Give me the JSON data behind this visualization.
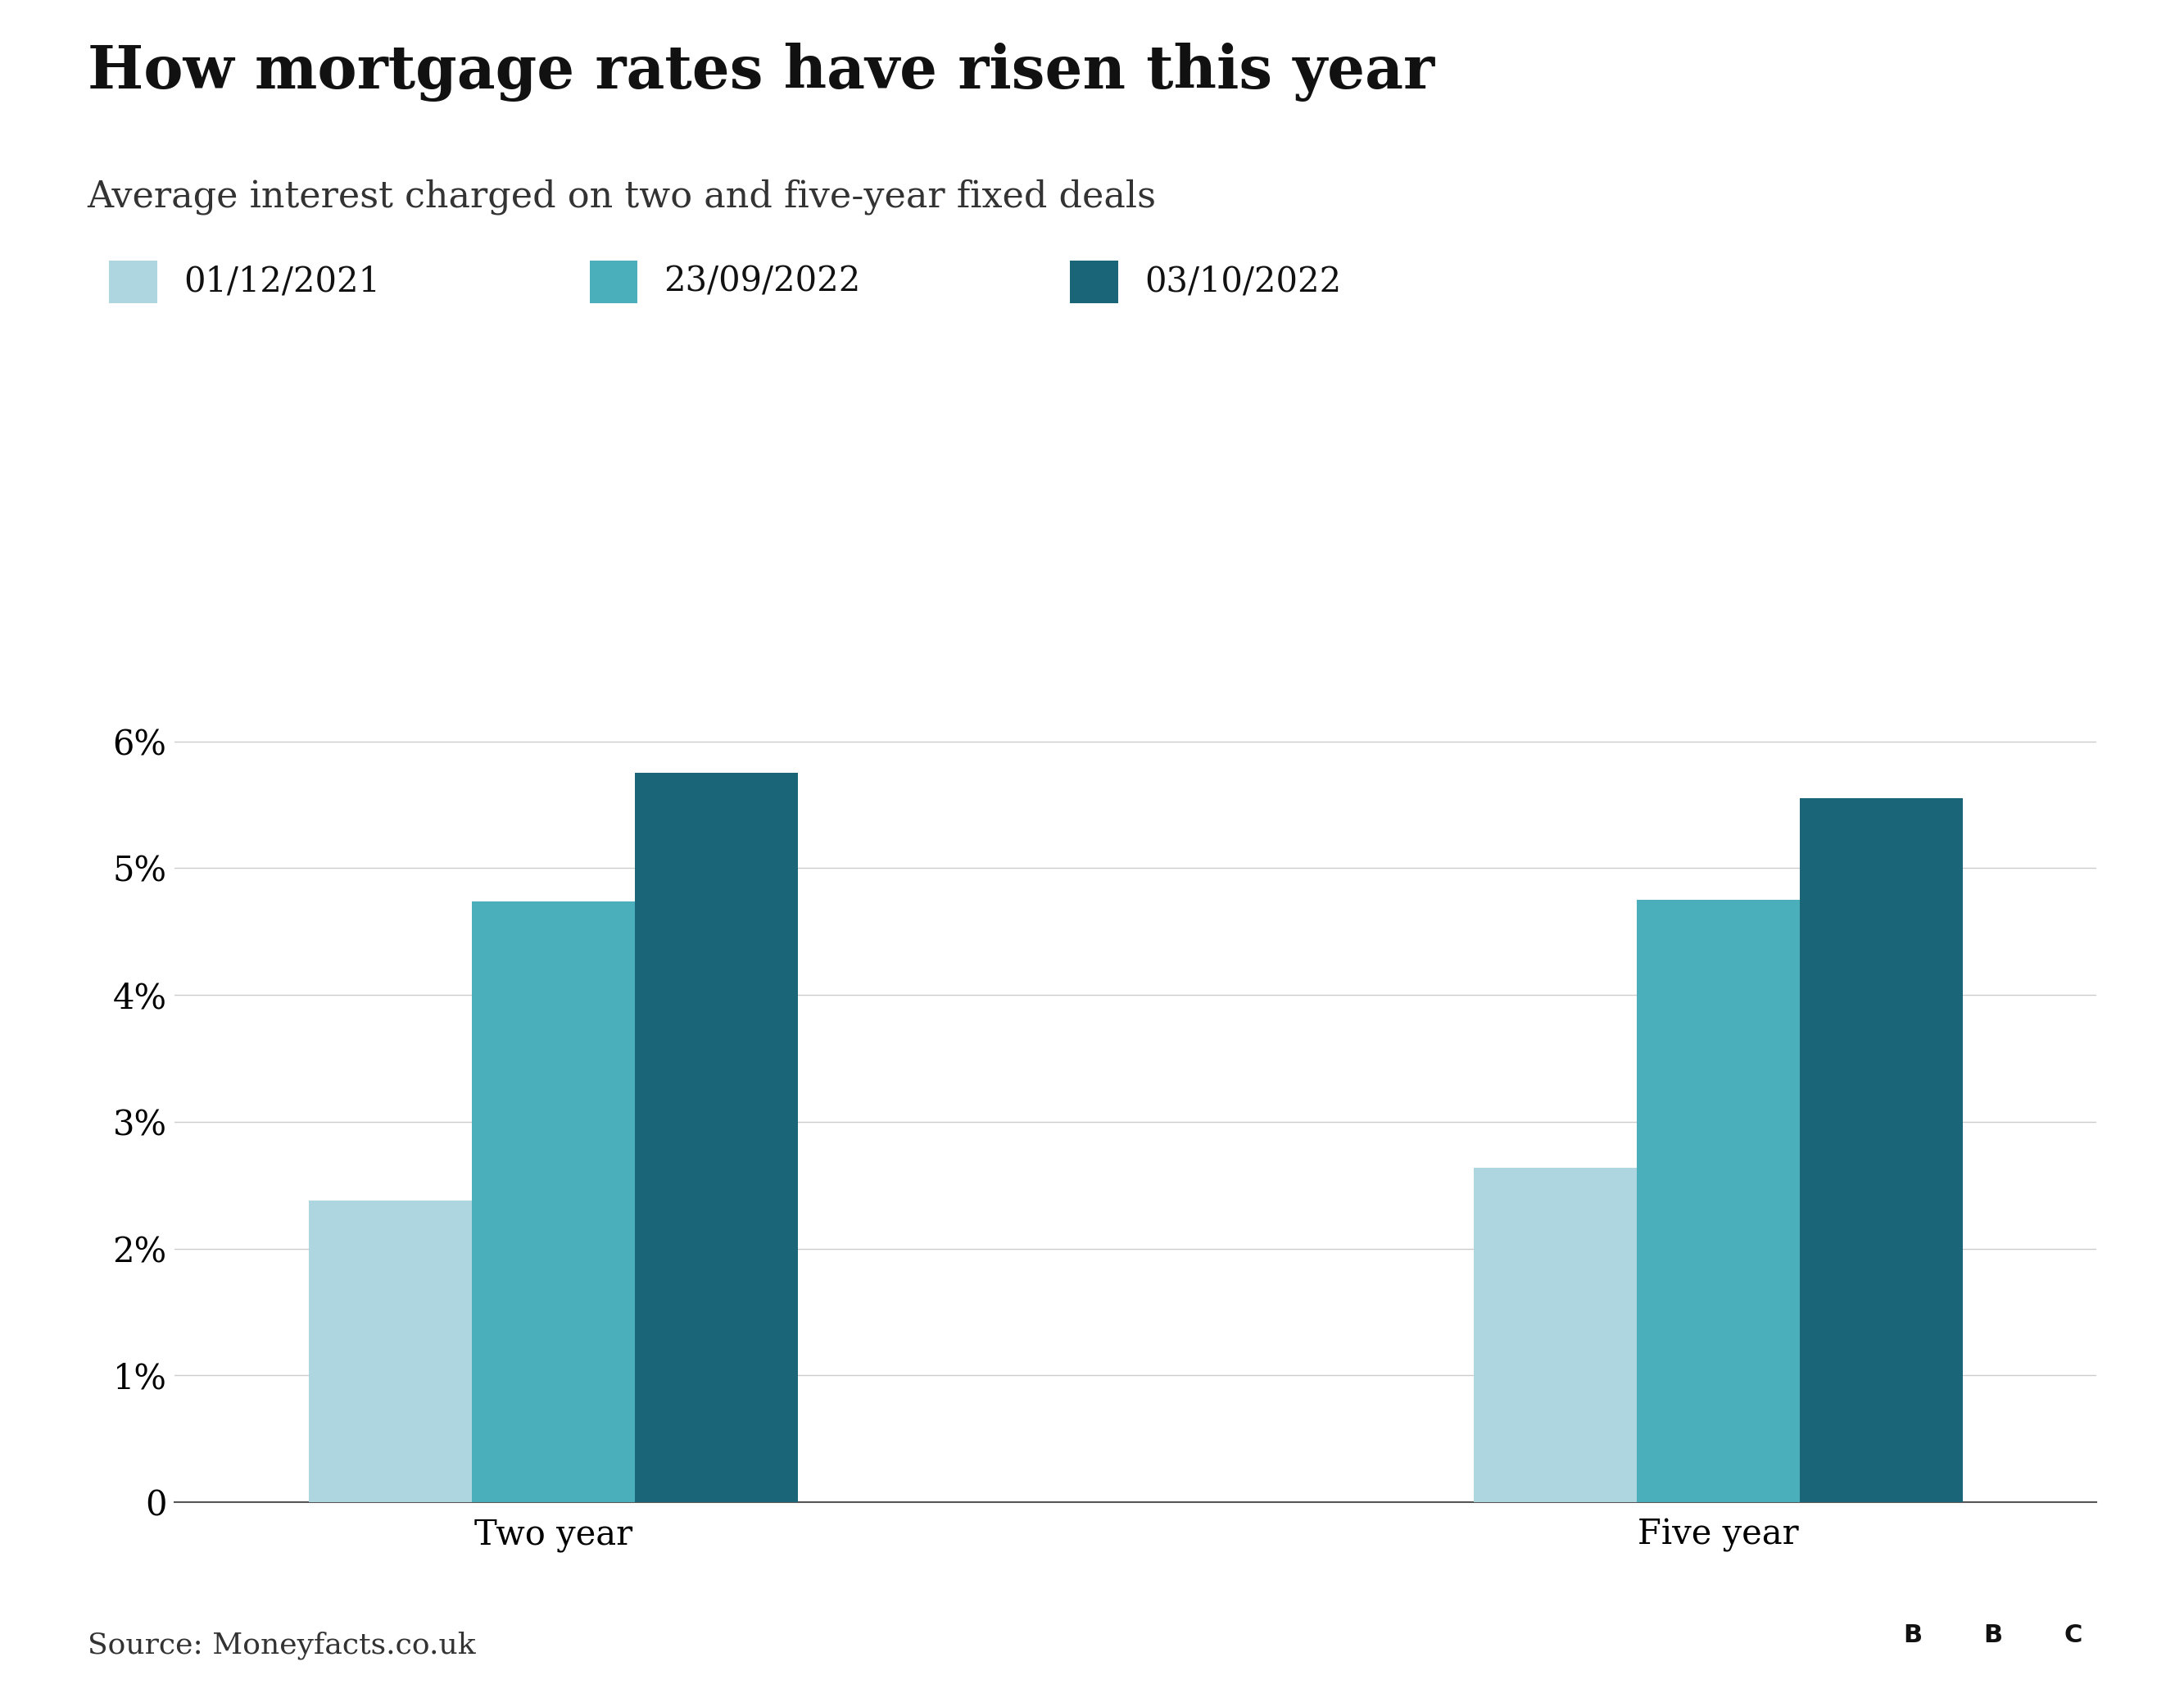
{
  "title": "How mortgage rates have risen this year",
  "subtitle": "Average interest charged on two and five-year fixed deals",
  "categories": [
    "Two year",
    "Five year"
  ],
  "series": [
    {
      "label": "01/12/2021",
      "color": "#aed6e0",
      "values": [
        2.38,
        2.64
      ]
    },
    {
      "label": "23/09/2022",
      "color": "#4aaebb",
      "values": [
        4.74,
        4.75
      ]
    },
    {
      "label": "03/10/2022",
      "color": "#1a6678",
      "values": [
        5.75,
        5.55
      ]
    }
  ],
  "ylim": [
    0,
    7
  ],
  "yticks": [
    0,
    1,
    2,
    3,
    4,
    5,
    6
  ],
  "ytick_labels": [
    "0",
    "1%",
    "2%",
    "3%",
    "4%",
    "5%",
    "6%"
  ],
  "source": "Source: Moneyfacts.co.uk",
  "background_color": "#ffffff",
  "title_fontsize": 52,
  "subtitle_fontsize": 32,
  "legend_fontsize": 30,
  "tick_fontsize": 30,
  "source_fontsize": 26,
  "bar_width": 0.28,
  "group_centers": [
    1.0,
    3.0
  ]
}
